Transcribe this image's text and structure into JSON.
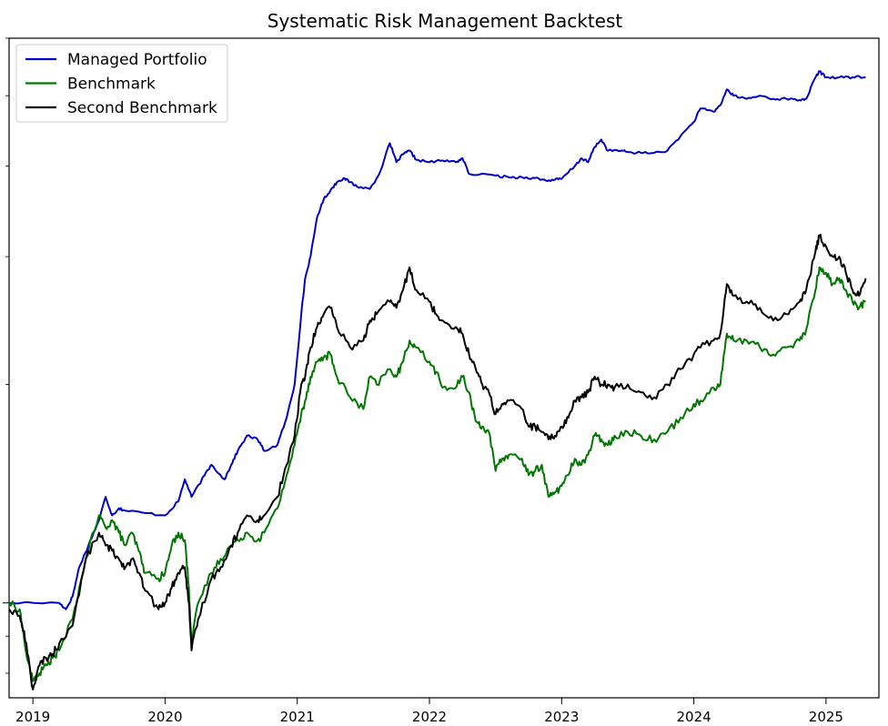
{
  "chart_data": {
    "type": "line",
    "title": "Systematic Risk Management Backtest",
    "xlabel": "",
    "ylabel": "",
    "yscale": "log",
    "grid": false,
    "legend_position": "top-left",
    "xlim": [
      2018.82,
      2025.4
    ],
    "ylim": [
      0.74,
      6.0
    ],
    "x_ticks": [
      {
        "label": "2019",
        "value": 2019
      },
      {
        "label": "2020",
        "value": 2020
      },
      {
        "label": "2021",
        "value": 2021
      },
      {
        "label": "2022",
        "value": 2022
      },
      {
        "label": "2023",
        "value": 2023
      },
      {
        "label": "2024",
        "value": 2024
      },
      {
        "label": "2025",
        "value": 2025
      }
    ],
    "series": [
      {
        "name": "Managed Portfolio",
        "color": "#0000cc",
        "points": [
          [
            2018.82,
            1.0
          ],
          [
            2019.2,
            1.0
          ],
          [
            2019.25,
            0.98
          ],
          [
            2019.3,
            1.02
          ],
          [
            2019.35,
            1.12
          ],
          [
            2019.42,
            1.2
          ],
          [
            2019.5,
            1.3
          ],
          [
            2019.55,
            1.4
          ],
          [
            2019.6,
            1.32
          ],
          [
            2019.65,
            1.35
          ],
          [
            2019.7,
            1.34
          ],
          [
            2019.85,
            1.33
          ],
          [
            2020.0,
            1.32
          ],
          [
            2020.1,
            1.38
          ],
          [
            2020.15,
            1.48
          ],
          [
            2020.2,
            1.4
          ],
          [
            2020.3,
            1.5
          ],
          [
            2020.35,
            1.55
          ],
          [
            2020.45,
            1.48
          ],
          [
            2020.5,
            1.55
          ],
          [
            2020.55,
            1.62
          ],
          [
            2020.62,
            1.7
          ],
          [
            2020.7,
            1.68
          ],
          [
            2020.75,
            1.62
          ],
          [
            2020.85,
            1.65
          ],
          [
            2020.92,
            1.8
          ],
          [
            2020.98,
            2.0
          ],
          [
            2021.03,
            2.5
          ],
          [
            2021.06,
            2.8
          ],
          [
            2021.1,
            3.0
          ],
          [
            2021.15,
            3.4
          ],
          [
            2021.2,
            3.6
          ],
          [
            2021.25,
            3.7
          ],
          [
            2021.3,
            3.8
          ],
          [
            2021.35,
            3.85
          ],
          [
            2021.4,
            3.8
          ],
          [
            2021.45,
            3.75
          ],
          [
            2021.55,
            3.72
          ],
          [
            2021.62,
            3.9
          ],
          [
            2021.7,
            4.3
          ],
          [
            2021.75,
            4.05
          ],
          [
            2021.8,
            4.15
          ],
          [
            2021.85,
            4.2
          ],
          [
            2021.9,
            4.08
          ],
          [
            2022.0,
            4.05
          ],
          [
            2022.1,
            4.07
          ],
          [
            2022.2,
            4.05
          ],
          [
            2022.25,
            4.1
          ],
          [
            2022.3,
            3.9
          ],
          [
            2022.5,
            3.88
          ],
          [
            2022.6,
            3.86
          ],
          [
            2022.7,
            3.86
          ],
          [
            2022.8,
            3.85
          ],
          [
            2022.88,
            3.82
          ],
          [
            2022.95,
            3.83
          ],
          [
            2023.0,
            3.84
          ],
          [
            2023.1,
            4.0
          ],
          [
            2023.15,
            4.1
          ],
          [
            2023.2,
            4.05
          ],
          [
            2023.25,
            4.25
          ],
          [
            2023.3,
            4.35
          ],
          [
            2023.35,
            4.2
          ],
          [
            2023.45,
            4.2
          ],
          [
            2023.5,
            4.18
          ],
          [
            2023.6,
            4.17
          ],
          [
            2023.7,
            4.17
          ],
          [
            2023.8,
            4.2
          ],
          [
            2023.9,
            4.4
          ],
          [
            2024.0,
            4.6
          ],
          [
            2024.05,
            4.8
          ],
          [
            2024.15,
            4.75
          ],
          [
            2024.2,
            4.85
          ],
          [
            2024.25,
            5.1
          ],
          [
            2024.3,
            5.0
          ],
          [
            2024.4,
            4.95
          ],
          [
            2024.5,
            5.0
          ],
          [
            2024.6,
            4.95
          ],
          [
            2024.7,
            4.95
          ],
          [
            2024.8,
            4.93
          ],
          [
            2024.85,
            4.95
          ],
          [
            2024.92,
            5.3
          ],
          [
            2024.95,
            5.4
          ],
          [
            2025.0,
            5.3
          ],
          [
            2025.1,
            5.3
          ],
          [
            2025.2,
            5.3
          ],
          [
            2025.3,
            5.3
          ]
        ]
      },
      {
        "name": "Benchmark",
        "color": "#007700",
        "points": [
          [
            2018.82,
            1.0
          ],
          [
            2018.9,
            0.98
          ],
          [
            2018.95,
            0.85
          ],
          [
            2019.0,
            0.78
          ],
          [
            2019.05,
            0.8
          ],
          [
            2019.1,
            0.82
          ],
          [
            2019.15,
            0.84
          ],
          [
            2019.2,
            0.86
          ],
          [
            2019.3,
            0.95
          ],
          [
            2019.4,
            1.15
          ],
          [
            2019.5,
            1.32
          ],
          [
            2019.55,
            1.27
          ],
          [
            2019.6,
            1.3
          ],
          [
            2019.65,
            1.25
          ],
          [
            2019.7,
            1.2
          ],
          [
            2019.75,
            1.25
          ],
          [
            2019.8,
            1.18
          ],
          [
            2019.85,
            1.1
          ],
          [
            2019.95,
            1.08
          ],
          [
            2020.0,
            1.1
          ],
          [
            2020.05,
            1.2
          ],
          [
            2020.1,
            1.25
          ],
          [
            2020.15,
            1.22
          ],
          [
            2020.18,
            1.05
          ],
          [
            2020.2,
            0.88
          ],
          [
            2020.25,
            1.0
          ],
          [
            2020.35,
            1.1
          ],
          [
            2020.42,
            1.15
          ],
          [
            2020.5,
            1.2
          ],
          [
            2020.55,
            1.22
          ],
          [
            2020.62,
            1.25
          ],
          [
            2020.7,
            1.22
          ],
          [
            2020.75,
            1.25
          ],
          [
            2020.85,
            1.35
          ],
          [
            2020.92,
            1.5
          ],
          [
            2020.98,
            1.65
          ],
          [
            2021.03,
            1.82
          ],
          [
            2021.06,
            1.9
          ],
          [
            2021.1,
            2.05
          ],
          [
            2021.15,
            2.15
          ],
          [
            2021.2,
            2.18
          ],
          [
            2021.25,
            2.2
          ],
          [
            2021.3,
            2.05
          ],
          [
            2021.4,
            1.92
          ],
          [
            2021.5,
            1.85
          ],
          [
            2021.55,
            2.05
          ],
          [
            2021.6,
            2.0
          ],
          [
            2021.7,
            2.1
          ],
          [
            2021.75,
            2.05
          ],
          [
            2021.8,
            2.15
          ],
          [
            2021.85,
            2.3
          ],
          [
            2021.9,
            2.25
          ],
          [
            2022.0,
            2.15
          ],
          [
            2022.05,
            2.08
          ],
          [
            2022.1,
            1.98
          ],
          [
            2022.2,
            1.98
          ],
          [
            2022.25,
            2.05
          ],
          [
            2022.3,
            1.95
          ],
          [
            2022.35,
            1.78
          ],
          [
            2022.4,
            1.75
          ],
          [
            2022.45,
            1.72
          ],
          [
            2022.5,
            1.52
          ],
          [
            2022.55,
            1.58
          ],
          [
            2022.6,
            1.6
          ],
          [
            2022.7,
            1.58
          ],
          [
            2022.75,
            1.5
          ],
          [
            2022.8,
            1.52
          ],
          [
            2022.85,
            1.55
          ],
          [
            2022.9,
            1.4
          ],
          [
            2022.95,
            1.42
          ],
          [
            2023.0,
            1.45
          ],
          [
            2023.05,
            1.5
          ],
          [
            2023.1,
            1.58
          ],
          [
            2023.15,
            1.55
          ],
          [
            2023.2,
            1.6
          ],
          [
            2023.25,
            1.7
          ],
          [
            2023.3,
            1.68
          ],
          [
            2023.35,
            1.65
          ],
          [
            2023.4,
            1.7
          ],
          [
            2023.5,
            1.72
          ],
          [
            2023.6,
            1.7
          ],
          [
            2023.7,
            1.68
          ],
          [
            2023.8,
            1.72
          ],
          [
            2023.9,
            1.8
          ],
          [
            2024.0,
            1.88
          ],
          [
            2024.05,
            1.9
          ],
          [
            2024.15,
            1.98
          ],
          [
            2024.2,
            2.0
          ],
          [
            2024.25,
            2.35
          ],
          [
            2024.3,
            2.3
          ],
          [
            2024.4,
            2.3
          ],
          [
            2024.5,
            2.25
          ],
          [
            2024.6,
            2.2
          ],
          [
            2024.7,
            2.25
          ],
          [
            2024.8,
            2.3
          ],
          [
            2024.85,
            2.38
          ],
          [
            2024.92,
            2.7
          ],
          [
            2024.95,
            2.9
          ],
          [
            2025.0,
            2.85
          ],
          [
            2025.05,
            2.75
          ],
          [
            2025.1,
            2.8
          ],
          [
            2025.15,
            2.7
          ],
          [
            2025.2,
            2.6
          ],
          [
            2025.25,
            2.55
          ],
          [
            2025.3,
            2.6
          ]
        ]
      },
      {
        "name": "Second Benchmark",
        "color": "#000000",
        "points": [
          [
            2018.82,
            0.98
          ],
          [
            2018.9,
            0.96
          ],
          [
            2018.95,
            0.88
          ],
          [
            2019.0,
            0.76
          ],
          [
            2019.05,
            0.82
          ],
          [
            2019.1,
            0.84
          ],
          [
            2019.15,
            0.85
          ],
          [
            2019.2,
            0.88
          ],
          [
            2019.3,
            0.93
          ],
          [
            2019.4,
            1.15
          ],
          [
            2019.5,
            1.25
          ],
          [
            2019.55,
            1.2
          ],
          [
            2019.6,
            1.18
          ],
          [
            2019.65,
            1.15
          ],
          [
            2019.7,
            1.12
          ],
          [
            2019.75,
            1.15
          ],
          [
            2019.8,
            1.1
          ],
          [
            2019.85,
            1.04
          ],
          [
            2019.95,
            0.98
          ],
          [
            2020.0,
            1.0
          ],
          [
            2020.05,
            1.05
          ],
          [
            2020.1,
            1.1
          ],
          [
            2020.15,
            1.12
          ],
          [
            2020.18,
            1.0
          ],
          [
            2020.2,
            0.86
          ],
          [
            2020.25,
            0.95
          ],
          [
            2020.35,
            1.08
          ],
          [
            2020.42,
            1.12
          ],
          [
            2020.5,
            1.2
          ],
          [
            2020.55,
            1.25
          ],
          [
            2020.62,
            1.32
          ],
          [
            2020.7,
            1.3
          ],
          [
            2020.75,
            1.32
          ],
          [
            2020.85,
            1.4
          ],
          [
            2020.92,
            1.55
          ],
          [
            2020.98,
            1.7
          ],
          [
            2021.03,
            2.0
          ],
          [
            2021.06,
            2.05
          ],
          [
            2021.1,
            2.25
          ],
          [
            2021.15,
            2.4
          ],
          [
            2021.2,
            2.5
          ],
          [
            2021.25,
            2.55
          ],
          [
            2021.3,
            2.4
          ],
          [
            2021.4,
            2.25
          ],
          [
            2021.5,
            2.3
          ],
          [
            2021.55,
            2.45
          ],
          [
            2021.6,
            2.5
          ],
          [
            2021.7,
            2.6
          ],
          [
            2021.75,
            2.55
          ],
          [
            2021.8,
            2.7
          ],
          [
            2021.85,
            2.9
          ],
          [
            2021.9,
            2.7
          ],
          [
            2022.0,
            2.6
          ],
          [
            2022.05,
            2.5
          ],
          [
            2022.1,
            2.45
          ],
          [
            2022.2,
            2.4
          ],
          [
            2022.25,
            2.35
          ],
          [
            2022.3,
            2.2
          ],
          [
            2022.35,
            2.1
          ],
          [
            2022.4,
            2.0
          ],
          [
            2022.45,
            1.95
          ],
          [
            2022.5,
            1.82
          ],
          [
            2022.55,
            1.88
          ],
          [
            2022.6,
            1.9
          ],
          [
            2022.7,
            1.85
          ],
          [
            2022.75,
            1.75
          ],
          [
            2022.8,
            1.75
          ],
          [
            2022.85,
            1.72
          ],
          [
            2022.9,
            1.68
          ],
          [
            2022.95,
            1.7
          ],
          [
            2023.0,
            1.75
          ],
          [
            2023.05,
            1.8
          ],
          [
            2023.1,
            1.9
          ],
          [
            2023.15,
            1.92
          ],
          [
            2023.2,
            1.95
          ],
          [
            2023.25,
            2.05
          ],
          [
            2023.3,
            2.0
          ],
          [
            2023.35,
            2.0
          ],
          [
            2023.4,
            1.98
          ],
          [
            2023.5,
            2.0
          ],
          [
            2023.6,
            1.95
          ],
          [
            2023.7,
            1.92
          ],
          [
            2023.8,
            2.0
          ],
          [
            2023.9,
            2.1
          ],
          [
            2024.0,
            2.2
          ],
          [
            2024.05,
            2.25
          ],
          [
            2024.15,
            2.3
          ],
          [
            2024.2,
            2.35
          ],
          [
            2024.25,
            2.75
          ],
          [
            2024.3,
            2.65
          ],
          [
            2024.4,
            2.6
          ],
          [
            2024.5,
            2.55
          ],
          [
            2024.6,
            2.45
          ],
          [
            2024.7,
            2.5
          ],
          [
            2024.8,
            2.6
          ],
          [
            2024.85,
            2.7
          ],
          [
            2024.92,
            3.05
          ],
          [
            2024.95,
            3.2
          ],
          [
            2025.0,
            3.1
          ],
          [
            2025.05,
            3.0
          ],
          [
            2025.1,
            3.0
          ],
          [
            2025.15,
            2.85
          ],
          [
            2025.2,
            2.7
          ],
          [
            2025.25,
            2.65
          ],
          [
            2025.3,
            2.8
          ]
        ]
      }
    ]
  }
}
